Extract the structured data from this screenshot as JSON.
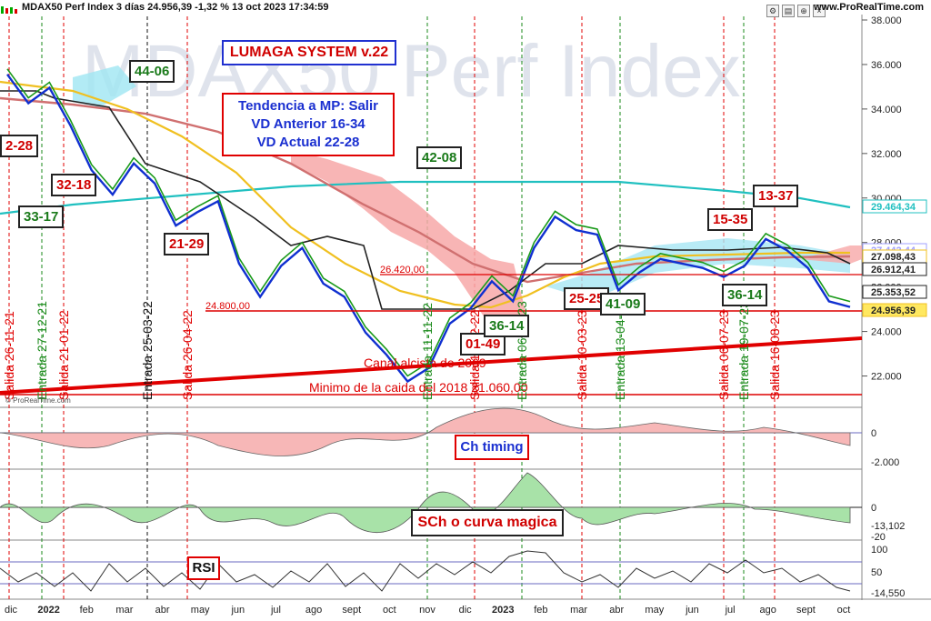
{
  "header": {
    "title": "MDAX50 Perf Index 3 días 24.956,39 -1,32 % 13 oct 2023 17:34:59",
    "source": "www.ProRealTime.com",
    "watermark": "MDAX50 Perf Index",
    "copyright": "© ProRealTime.com"
  },
  "annotations": {
    "system_title": "LUMAGA SYSTEM v.22",
    "trend_box": [
      "Tendencia a MP: Salir",
      "VD Anterior 16-34",
      "VD Actual 22-28"
    ],
    "ch_timing": "Ch timing",
    "sch": "SCh o curva magica",
    "rsi": "RSI",
    "level_26420": "26.420,00",
    "level_24800": "24.800,00",
    "support_text": "Canal alcista de 2009",
    "min_text": "Minimo de la caida del 2018  21.060,00",
    "vd_boxes": [
      {
        "text": "2-28",
        "color": "red"
      },
      {
        "text": "44-06",
        "color": "green"
      },
      {
        "text": "32-18",
        "color": "red"
      },
      {
        "text": "33-17",
        "color": "green"
      },
      {
        "text": "21-29",
        "color": "red"
      },
      {
        "text": "42-08",
        "color": "green"
      },
      {
        "text": "01-49",
        "color": "red"
      },
      {
        "text": "36-14",
        "color": "green"
      },
      {
        "text": "25-25",
        "color": "red"
      },
      {
        "text": "41-09",
        "color": "green"
      },
      {
        "text": "15-35",
        "color": "red"
      },
      {
        "text": "13-37",
        "color": "red"
      },
      {
        "text": "36-14",
        "color": "green"
      }
    ],
    "signals": [
      {
        "text": "Salida 26-11-21",
        "color": "red"
      },
      {
        "text": "Entrada 27-12-21",
        "color": "green"
      },
      {
        "text": "Salida 21-01-22",
        "color": "red"
      },
      {
        "text": "Entrada 25-03-22",
        "color": "black"
      },
      {
        "text": "Salida 26-04-22",
        "color": "red"
      },
      {
        "text": "Entrada 11-11-22",
        "color": "green"
      },
      {
        "text": "Salida 16-12-22",
        "color": "red"
      },
      {
        "text": "Entrada 06-01-23",
        "color": "green"
      },
      {
        "text": "Salida 10-03-23",
        "color": "red"
      },
      {
        "text": "Entrada 13-04-23",
        "color": "green"
      },
      {
        "text": "Entrada 19-07-23",
        "color": "green"
      },
      {
        "text": "Salida 06-07-23",
        "color": "red"
      },
      {
        "text": "Salida 16-08-23",
        "color": "red"
      }
    ]
  },
  "chart_data": {
    "type": "line",
    "x_labels": [
      "dic",
      "2022",
      "feb",
      "mar",
      "abr",
      "may",
      "jun",
      "jul",
      "ago",
      "sept",
      "oct",
      "nov",
      "dic",
      "2023",
      "feb",
      "mar",
      "abr",
      "may",
      "jun",
      "jul",
      "ago",
      "sept",
      "oct"
    ],
    "y_ticks": [
      "38.000",
      "36.000",
      "34.000",
      "32.000",
      "30.000",
      "28.000",
      "26.000",
      "24.000",
      "22.000"
    ],
    "ylim": [
      21000,
      38000
    ],
    "price_path": [
      35800,
      34500,
      35200,
      33500,
      31500,
      30400,
      31800,
      30900,
      29000,
      29600,
      30100,
      27300,
      25800,
      27200,
      28000,
      26400,
      25800,
      24200,
      23200,
      22000,
      22600,
      24600,
      25300,
      26500,
      25600,
      28000,
      29400,
      28800,
      28600,
      26100,
      26900,
      27500,
      27300,
      27100,
      26700,
      27200,
      28400,
      27900,
      27100,
      25600,
      25350
    ],
    "price_labels": [
      {
        "value": "29.464,34",
        "color": "#20c0c0"
      },
      {
        "value": "27.442,44",
        "color": "#a0a0ff"
      },
      {
        "value": "27.098,43",
        "color": "#f0c020"
      },
      {
        "value": "26.912,41",
        "color": "#222222"
      },
      {
        "value": "25.353,52",
        "color": "#222222"
      },
      {
        "value": "24.956,39",
        "color": "#f0c020"
      }
    ],
    "indicators": [
      {
        "name": "Ch timing",
        "ticks": [
          "0",
          "-2.000"
        ]
      },
      {
        "name": "SCh o curva magica",
        "ticks": [
          "0",
          "-13,102",
          "-20"
        ]
      },
      {
        "name": "RSI",
        "ticks": [
          "100",
          "50",
          "-14,550"
        ]
      }
    ]
  }
}
